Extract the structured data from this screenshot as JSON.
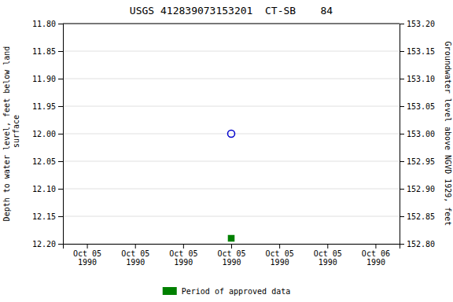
{
  "chart_data": {
    "type": "scatter",
    "title": "USGS 412839073153201  CT-SB    84",
    "y_label": "Depth to water level, feet below land\n surface",
    "y2_label": "Groundwater level above NGVD 1929, feet",
    "categories": [
      "Oct 05\n1990",
      "Oct 05\n1990",
      "Oct 05\n1990",
      "Oct 05\n1990",
      "Oct 05\n1990",
      "Oct 05\n1990",
      "Oct 06\n1990"
    ],
    "series": [
      {
        "values": [
          null,
          null,
          null,
          12.0,
          null,
          null,
          null
        ],
        "color": "#0000cc",
        "marker": "open-circle"
      },
      {
        "name": "Period of approved data",
        "values": [
          null,
          null,
          null,
          12.19,
          null,
          null,
          null
        ],
        "color": "#008000",
        "marker": "square"
      }
    ],
    "ylim": [
      12.2,
      11.8
    ],
    "yticks": [
      {
        "value": 11.8,
        "label": "11.80"
      },
      {
        "value": 11.85,
        "label": "11.85"
      },
      {
        "value": 11.9,
        "label": "11.90"
      },
      {
        "value": 11.95,
        "label": "11.95"
      },
      {
        "value": 12.0,
        "label": "12.00"
      },
      {
        "value": 12.05,
        "label": "12.05"
      },
      {
        "value": 12.1,
        "label": "12.10"
      },
      {
        "value": 12.15,
        "label": "12.15"
      },
      {
        "value": 12.2,
        "label": "12.20"
      }
    ],
    "y2lim": [
      152.8,
      153.2
    ],
    "y2ticks": [
      {
        "value": 152.8,
        "label": "152.80"
      },
      {
        "value": 152.85,
        "label": "152.85"
      },
      {
        "value": 152.9,
        "label": "152.90"
      },
      {
        "value": 152.95,
        "label": "152.95"
      },
      {
        "value": 153.0,
        "label": "153.00"
      },
      {
        "value": 153.05,
        "label": "153.05"
      },
      {
        "value": 153.1,
        "label": "153.10"
      },
      {
        "value": 153.15,
        "label": "153.15"
      },
      {
        "value": 153.2,
        "label": "153.20"
      }
    ],
    "grid": true,
    "legend": "bottom"
  }
}
